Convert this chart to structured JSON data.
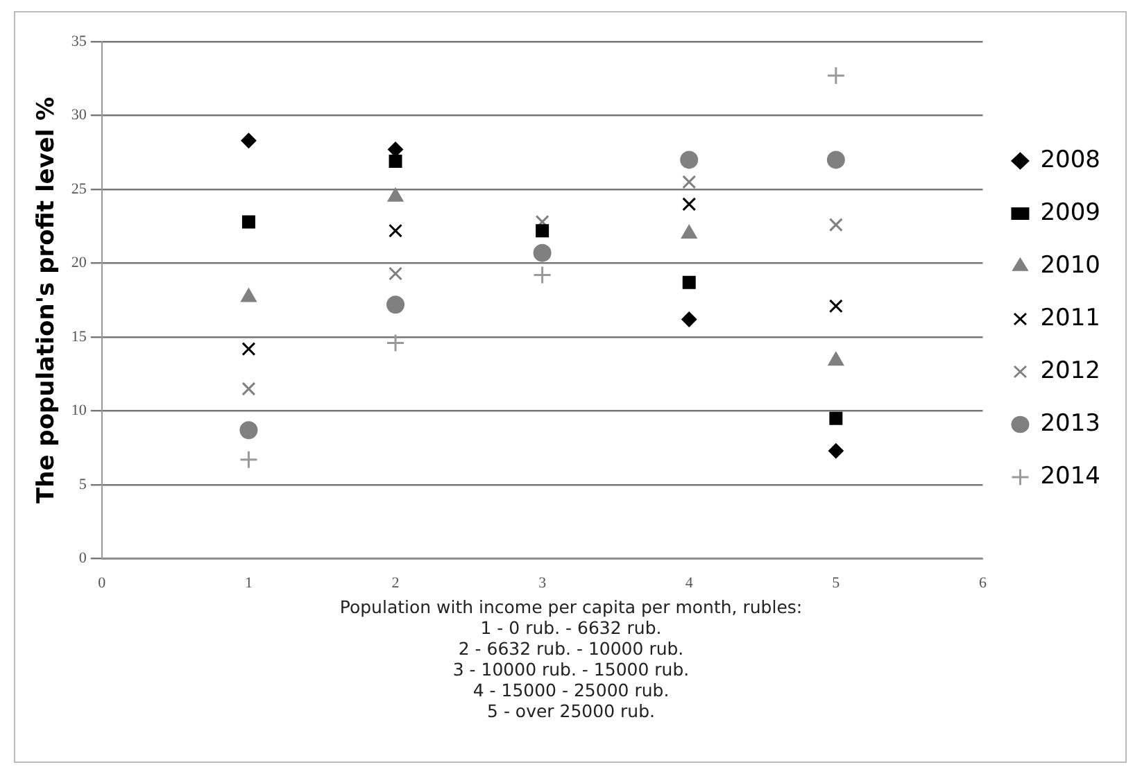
{
  "chart_data": {
    "type": "scatter",
    "ylabel": "The population's profit level %",
    "xlabel": "Population with income per capita per month, rubles:\n1 - 0 rub. - 6632 rub.\n2 - 6632 rub. - 10000 rub.\n3 - 10000 rub. - 15000 rub.\n4 - 15000 - 25000 rub.\n5 - over 25000 rub.",
    "x": [
      1,
      2,
      3,
      4,
      5
    ],
    "xlim": [
      0,
      6
    ],
    "xticks": [
      0,
      1,
      2,
      3,
      4,
      5,
      6
    ],
    "ylim": [
      0,
      35
    ],
    "yticks": [
      0,
      5,
      10,
      15,
      20,
      25,
      30,
      35
    ],
    "grid": "y",
    "legend": "right",
    "series": [
      {
        "name": "2008",
        "color": "#000000",
        "marker": "diamond",
        "values": [
          28.3,
          27.7,
          null,
          16.2,
          7.3
        ]
      },
      {
        "name": "2009",
        "color": "#000000",
        "marker": "square",
        "values": [
          22.8,
          26.9,
          22.2,
          18.7,
          9.5
        ]
      },
      {
        "name": "2010",
        "color": "#808080",
        "marker": "triangle",
        "values": [
          17.7,
          24.5,
          null,
          22.0,
          13.4
        ]
      },
      {
        "name": "2011",
        "color": "#000000",
        "marker": "cross",
        "values": [
          14.2,
          22.2,
          null,
          24.0,
          17.1
        ]
      },
      {
        "name": "2012",
        "color": "#808080",
        "marker": "cross",
        "values": [
          11.5,
          19.3,
          22.8,
          25.5,
          22.6
        ]
      },
      {
        "name": "2013",
        "color": "#808080",
        "marker": "circle",
        "values": [
          8.7,
          17.2,
          20.7,
          27.0,
          27.0
        ]
      },
      {
        "name": "2014",
        "color": "#999999",
        "marker": "plus",
        "values": [
          6.7,
          14.6,
          19.2,
          null,
          32.7
        ]
      }
    ]
  }
}
